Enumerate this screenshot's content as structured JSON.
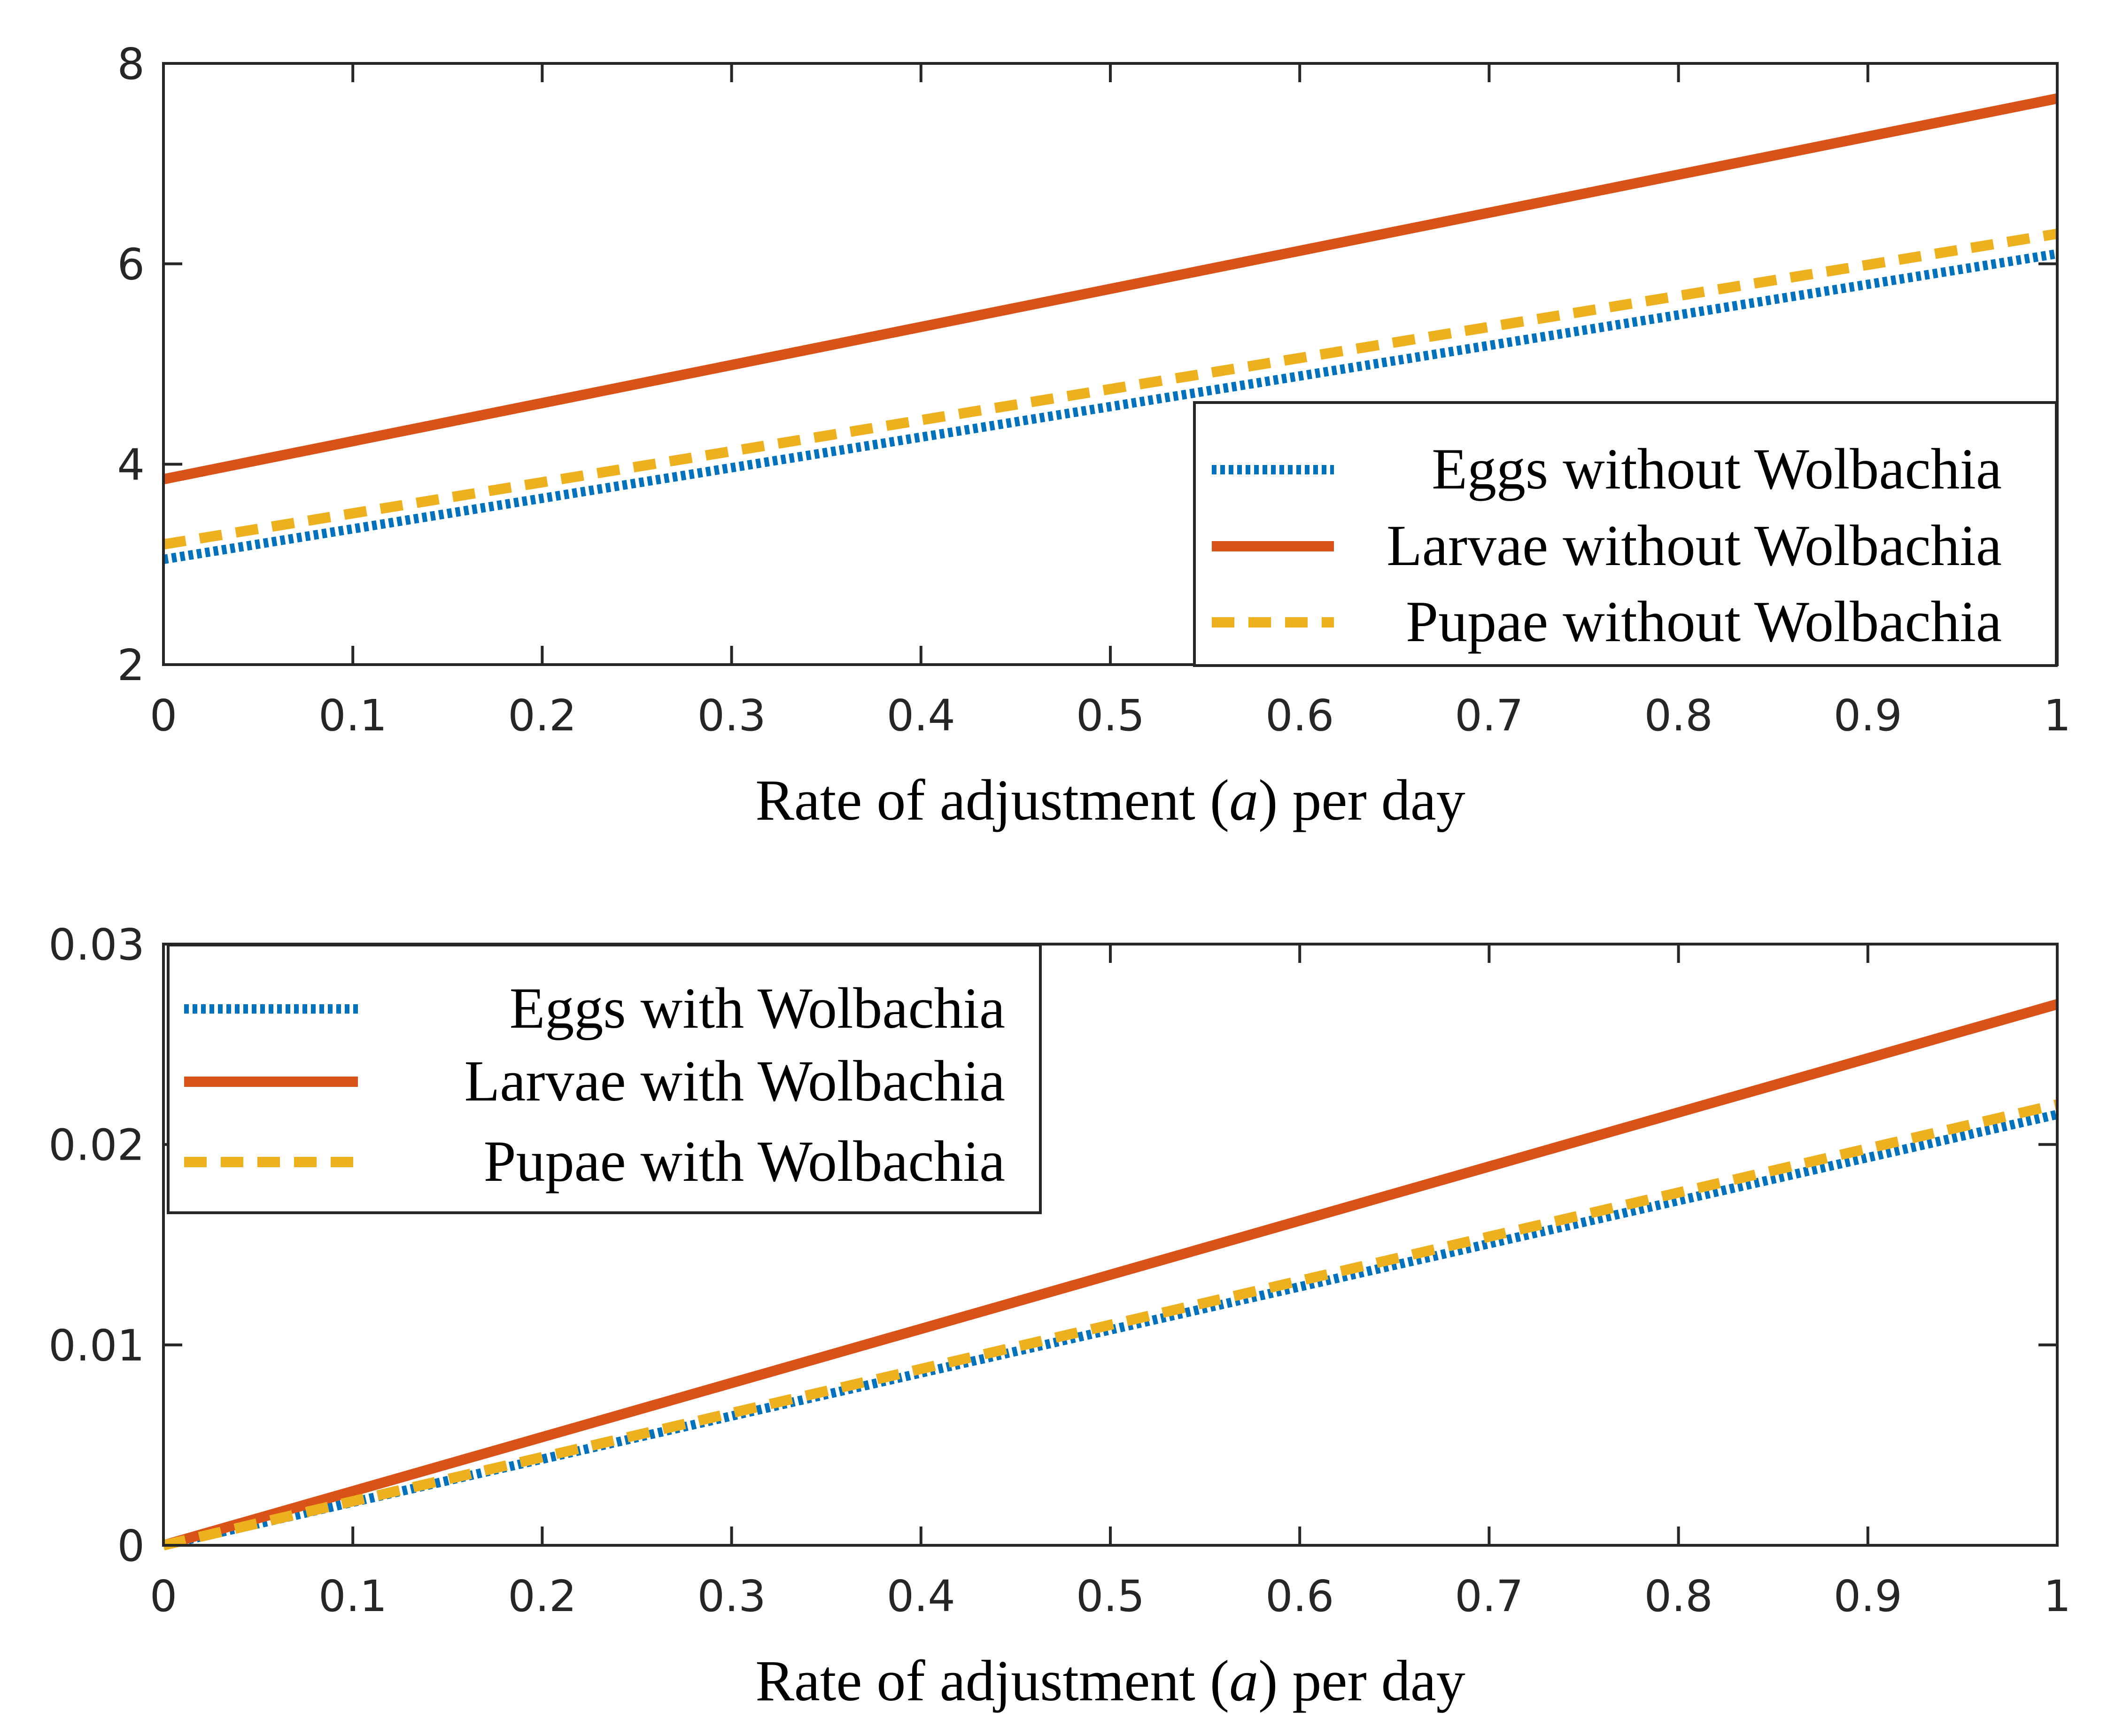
{
  "chart_data": [
    {
      "type": "line",
      "xlabel": "Rate of adjustment (a) per day",
      "xlabel_parts": [
        "Rate of adjustment (",
        "a",
        ") per day"
      ],
      "ylabel": "",
      "xlim": [
        0,
        1
      ],
      "ylim": [
        2,
        8
      ],
      "xticks": [
        "0",
        "0.1",
        "0.2",
        "0.3",
        "0.4",
        "0.5",
        "0.6",
        "0.7",
        "0.8",
        "0.9",
        "1"
      ],
      "yticks": [
        "2",
        "4",
        "6",
        "8"
      ],
      "grid": false,
      "legend_position": "bottom-right",
      "series": [
        {
          "name": "Eggs without Wolbachia",
          "style": "dotted",
          "color": "#0072bd",
          "x": [
            0,
            1
          ],
          "y": [
            3.05,
            6.1
          ]
        },
        {
          "name": "Larvae without Wolbachia",
          "style": "solid",
          "color": "#d95319",
          "x": [
            0,
            1
          ],
          "y": [
            3.85,
            7.65
          ]
        },
        {
          "name": "Pupae without Wolbachia",
          "style": "dashed",
          "color": "#edb120",
          "x": [
            0,
            1
          ],
          "y": [
            3.2,
            6.3
          ]
        }
      ]
    },
    {
      "type": "line",
      "xlabel": "Rate of adjustment (a) per day",
      "xlabel_parts": [
        "Rate of adjustment (",
        "a",
        ") per day"
      ],
      "ylabel": "",
      "xlim": [
        0,
        1
      ],
      "ylim": [
        0,
        0.03
      ],
      "xticks": [
        "0",
        "0.1",
        "0.2",
        "0.3",
        "0.4",
        "0.5",
        "0.6",
        "0.7",
        "0.8",
        "0.9",
        "1"
      ],
      "yticks": [
        "0",
        "0.01",
        "0.02",
        "0.03"
      ],
      "grid": false,
      "legend_position": "top-left",
      "series": [
        {
          "name": "Eggs with Wolbachia",
          "style": "dotted",
          "color": "#0072bd",
          "x": [
            0,
            1
          ],
          "y": [
            0,
            0.0215
          ]
        },
        {
          "name": "Larvae with Wolbachia",
          "style": "solid",
          "color": "#d95319",
          "x": [
            0,
            1
          ],
          "y": [
            0,
            0.027
          ]
        },
        {
          "name": "Pupae with Wolbachia",
          "style": "dashed",
          "color": "#edb120",
          "x": [
            0,
            1
          ],
          "y": [
            0,
            0.022
          ]
        }
      ]
    }
  ]
}
